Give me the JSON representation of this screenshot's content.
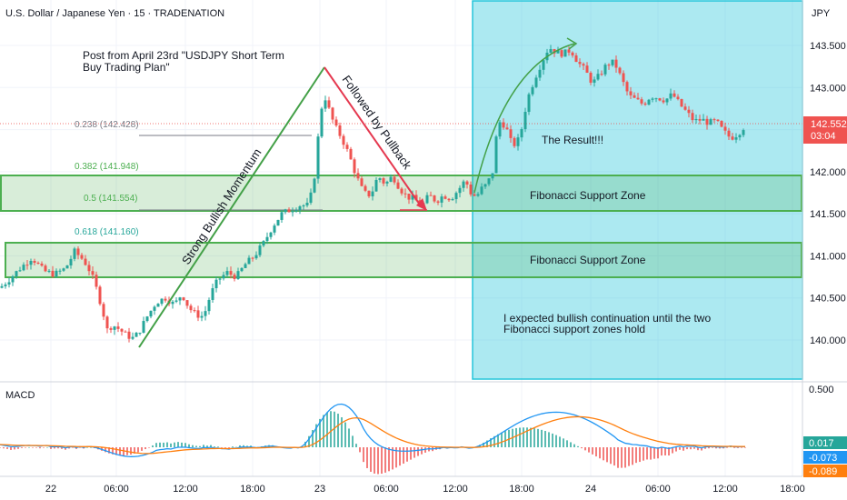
{
  "header": {
    "title": "U.S. Dollar / Japanese Yen · 15 · TRADENATION",
    "currency": "JPY"
  },
  "price_axis": {
    "ticks": [
      "143.500",
      "143.000",
      "142.500",
      "142.000",
      "141.500",
      "141.000",
      "140.500",
      "140.000"
    ],
    "last_price": "142.552",
    "countdown": "03:04"
  },
  "macd": {
    "label": "MACD",
    "scale_tick": "0.500",
    "values": {
      "hist": "0.017",
      "macd": "-0.073",
      "signal": "-0.089"
    }
  },
  "time_axis": [
    "22",
    "06:00",
    "12:00",
    "18:00",
    "23",
    "06:00",
    "12:00",
    "18:00",
    "24",
    "06:00",
    "12:00",
    "18:00"
  ],
  "fib_labels": [
    "0.238 (142.428)",
    "0.382 (141.948)",
    "0.5 (141.554)",
    "0.618 (141.160)"
  ],
  "annotations": {
    "post_title_line1": "Post from April 23rd \"USDJPY Short Term",
    "post_title_line2": "Buy Trading Plan\"",
    "momentum": "Strong Bullish Momentum",
    "pullback": "Followed by Pullback",
    "result": "The Result!!!",
    "zone1": "Fibonacci Support Zone",
    "zone2": "Fibonacci Support Zone",
    "expect_line1": "I expected bullish continuation until the two",
    "expect_line2": "Fibonacci support zones hold"
  },
  "colors": {
    "up": "#26a69a",
    "down": "#ef5350",
    "zone_fill": "#c8e6c9",
    "zone_line": "#4caf50",
    "result_box": "#26c6da",
    "macd_line": "#2196f3",
    "signal_line": "#ff7f0e",
    "impulse": "#43a047",
    "pullback_arrow": "#e53950"
  },
  "chart_data": {
    "type": "candlestick",
    "symbol": "USDJPY",
    "timeframe": "15",
    "ylim": [
      139.8,
      143.85
    ],
    "fib_levels": [
      {
        "ratio": 0.238,
        "price": 142.428
      },
      {
        "ratio": 0.382,
        "price": 141.948
      },
      {
        "ratio": 0.5,
        "price": 141.554
      },
      {
        "ratio": 0.618,
        "price": 141.16
      }
    ],
    "support_zones": [
      [
        141.55,
        141.95
      ],
      [
        140.75,
        141.14
      ]
    ],
    "price_path": [
      [
        0,
        140.62
      ],
      [
        10,
        140.72
      ],
      [
        22,
        140.85
      ],
      [
        35,
        140.98
      ],
      [
        48,
        140.82
      ],
      [
        60,
        140.78
      ],
      [
        72,
        140.85
      ],
      [
        82,
        141.05
      ],
      [
        92,
        140.95
      ],
      [
        100,
        140.8
      ],
      [
        108,
        140.55
      ],
      [
        114,
        140.3
      ],
      [
        118,
        140.12
      ],
      [
        124,
        140.18
      ],
      [
        132,
        140.12
      ],
      [
        140,
        140.05
      ],
      [
        147,
        140.02
      ],
      [
        153,
        140.1
      ],
      [
        162,
        140.28
      ],
      [
        172,
        140.45
      ],
      [
        182,
        140.5
      ],
      [
        192,
        140.42
      ],
      [
        200,
        140.55
      ],
      [
        208,
        140.38
      ],
      [
        216,
        140.3
      ],
      [
        224,
        140.28
      ],
      [
        232,
        140.55
      ],
      [
        240,
        140.72
      ],
      [
        250,
        140.8
      ],
      [
        260,
        140.75
      ],
      [
        270,
        140.9
      ],
      [
        280,
        141.0
      ],
      [
        290,
        141.15
      ],
      [
        300,
        141.35
      ],
      [
        310,
        141.5
      ],
      [
        320,
        141.55
      ],
      [
        330,
        141.6
      ],
      [
        340,
        141.6
      ],
      [
        346,
        141.95
      ],
      [
        350,
        142.4
      ],
      [
        356,
        142.95
      ],
      [
        360,
        142.8
      ],
      [
        368,
        142.55
      ],
      [
        376,
        142.4
      ],
      [
        384,
        142.2
      ],
      [
        392,
        141.95
      ],
      [
        400,
        141.75
      ],
      [
        408,
        141.72
      ],
      [
        416,
        141.95
      ],
      [
        424,
        141.85
      ],
      [
        432,
        141.95
      ],
      [
        440,
        141.8
      ],
      [
        448,
        141.7
      ],
      [
        456,
        141.68
      ],
      [
        464,
        141.58
      ],
      [
        472,
        141.72
      ],
      [
        480,
        141.65
      ],
      [
        488,
        141.72
      ],
      [
        496,
        141.68
      ],
      [
        504,
        141.78
      ],
      [
        512,
        141.9
      ],
      [
        518,
        141.75
      ],
      [
        524,
        141.7
      ],
      [
        530,
        141.8
      ],
      [
        536,
        141.85
      ],
      [
        542,
        142.0
      ],
      [
        548,
        142.6
      ],
      [
        556,
        142.55
      ],
      [
        564,
        142.3
      ],
      [
        572,
        142.4
      ],
      [
        580,
        142.85
      ],
      [
        588,
        143.1
      ],
      [
        596,
        143.3
      ],
      [
        604,
        143.48
      ],
      [
        612,
        143.42
      ],
      [
        620,
        143.4
      ],
      [
        628,
        143.45
      ],
      [
        636,
        143.3
      ],
      [
        644,
        143.2
      ],
      [
        652,
        143.05
      ],
      [
        660,
        143.15
      ],
      [
        668,
        143.28
      ],
      [
        676,
        143.3
      ],
      [
        684,
        143.1
      ],
      [
        692,
        142.9
      ],
      [
        700,
        142.85
      ],
      [
        708,
        142.8
      ],
      [
        716,
        142.9
      ],
      [
        724,
        142.88
      ],
      [
        732,
        142.85
      ],
      [
        740,
        142.92
      ],
      [
        748,
        142.8
      ],
      [
        756,
        142.7
      ],
      [
        764,
        142.6
      ],
      [
        772,
        142.62
      ],
      [
        780,
        142.58
      ],
      [
        788,
        142.6
      ],
      [
        796,
        142.48
      ],
      [
        804,
        142.4
      ],
      [
        812,
        142.45
      ],
      [
        820,
        142.55
      ]
    ]
  }
}
